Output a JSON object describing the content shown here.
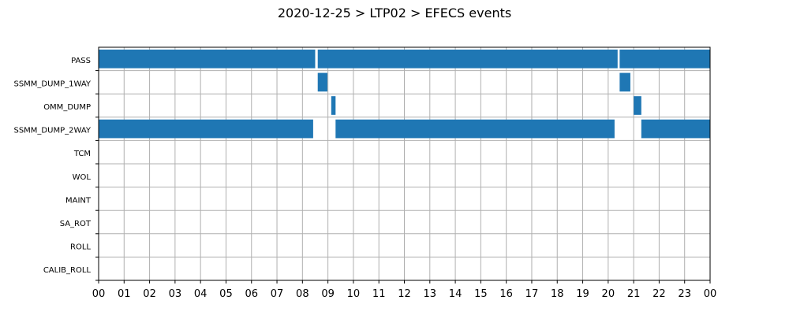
{
  "chart_data": {
    "type": "gantt",
    "title": "2020-12-25 > LTP02 > EFECS events",
    "xlabel": "",
    "ylabel": "",
    "x_unit": "hour",
    "xlim": [
      0,
      24
    ],
    "x_tick_labels": [
      "00",
      "01",
      "02",
      "03",
      "04",
      "05",
      "06",
      "07",
      "08",
      "09",
      "10",
      "11",
      "12",
      "13",
      "14",
      "15",
      "16",
      "17",
      "18",
      "19",
      "20",
      "21",
      "22",
      "23",
      "00"
    ],
    "categories": [
      "PASS",
      "SSMM_DUMP_1WAY",
      "OMM_DUMP",
      "SSMM_DUMP_2WAY",
      "TCM",
      "WOL",
      "MAINT",
      "SA_ROT",
      "ROLL",
      "CALIB_ROLL"
    ],
    "grid": true,
    "legend": "none",
    "bar_color": "#1f77b4",
    "events": {
      "PASS": [
        [
          0.0,
          8.5
        ],
        [
          8.6,
          20.37
        ],
        [
          20.45,
          24.0
        ]
      ],
      "SSMM_DUMP_1WAY": [
        [
          8.6,
          8.98
        ],
        [
          20.45,
          20.87
        ]
      ],
      "OMM_DUMP": [
        [
          9.13,
          9.3
        ],
        [
          21.0,
          21.3
        ]
      ],
      "SSMM_DUMP_2WAY": [
        [
          0.0,
          8.42
        ],
        [
          9.3,
          20.25
        ],
        [
          21.3,
          24.0
        ]
      ],
      "TCM": [],
      "WOL": [],
      "MAINT": [],
      "SA_ROT": [],
      "ROLL": [],
      "CALIB_ROLL": []
    }
  }
}
